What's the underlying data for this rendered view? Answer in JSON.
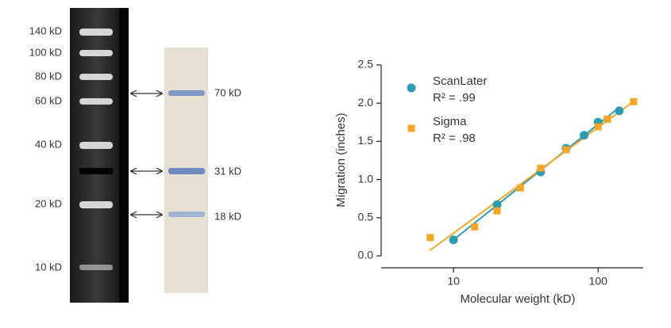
{
  "gel": {
    "marker_labels": [
      "140 kD",
      "100 kD",
      "80 kD",
      "60 kD",
      "40 kD",
      "20 kD",
      "10 kD"
    ],
    "sample_labels": [
      "70 kD",
      "31 kD",
      "18 kD"
    ]
  },
  "chart_data": {
    "type": "scatter",
    "x_label": "Molecular weight (kD)",
    "y_label": "Migration (inches)",
    "xlog": true,
    "xlim": [
      3.16,
      205
    ],
    "xticks": [
      10,
      100
    ],
    "ylim": [
      0,
      2.5
    ],
    "yticks": [
      {
        "value": 0,
        "label": "0.0"
      },
      0.5,
      {
        "value": 1,
        "label": "1.0"
      },
      1.5,
      {
        "value": 2,
        "label": "2.0"
      },
      2.5
    ],
    "series": [
      {
        "name": "ScanLater",
        "r2_label": "R² = .99",
        "color": "#2a9db0",
        "marker": "circle",
        "x": [
          10,
          20,
          40,
          60,
          80,
          100,
          140
        ],
        "values": [
          0.21,
          0.67,
          1.1,
          1.41,
          1.58,
          1.75,
          1.9
        ],
        "fit": {
          "x": [
            10,
            137
          ],
          "values": [
            0.21,
            1.93
          ]
        }
      },
      {
        "name": "Sigma",
        "r2_label": "R² = .98",
        "color": "#f5a623",
        "marker": "square",
        "x": [
          6.9,
          14,
          20,
          29,
          40,
          60,
          100,
          116,
          176
        ],
        "values": [
          0.24,
          0.38,
          0.59,
          0.89,
          1.15,
          1.39,
          1.69,
          1.79,
          2.02
        ],
        "fit": {
          "x": [
            6.85,
            181
          ],
          "values": [
            0.07,
            2.04
          ]
        }
      }
    ]
  }
}
